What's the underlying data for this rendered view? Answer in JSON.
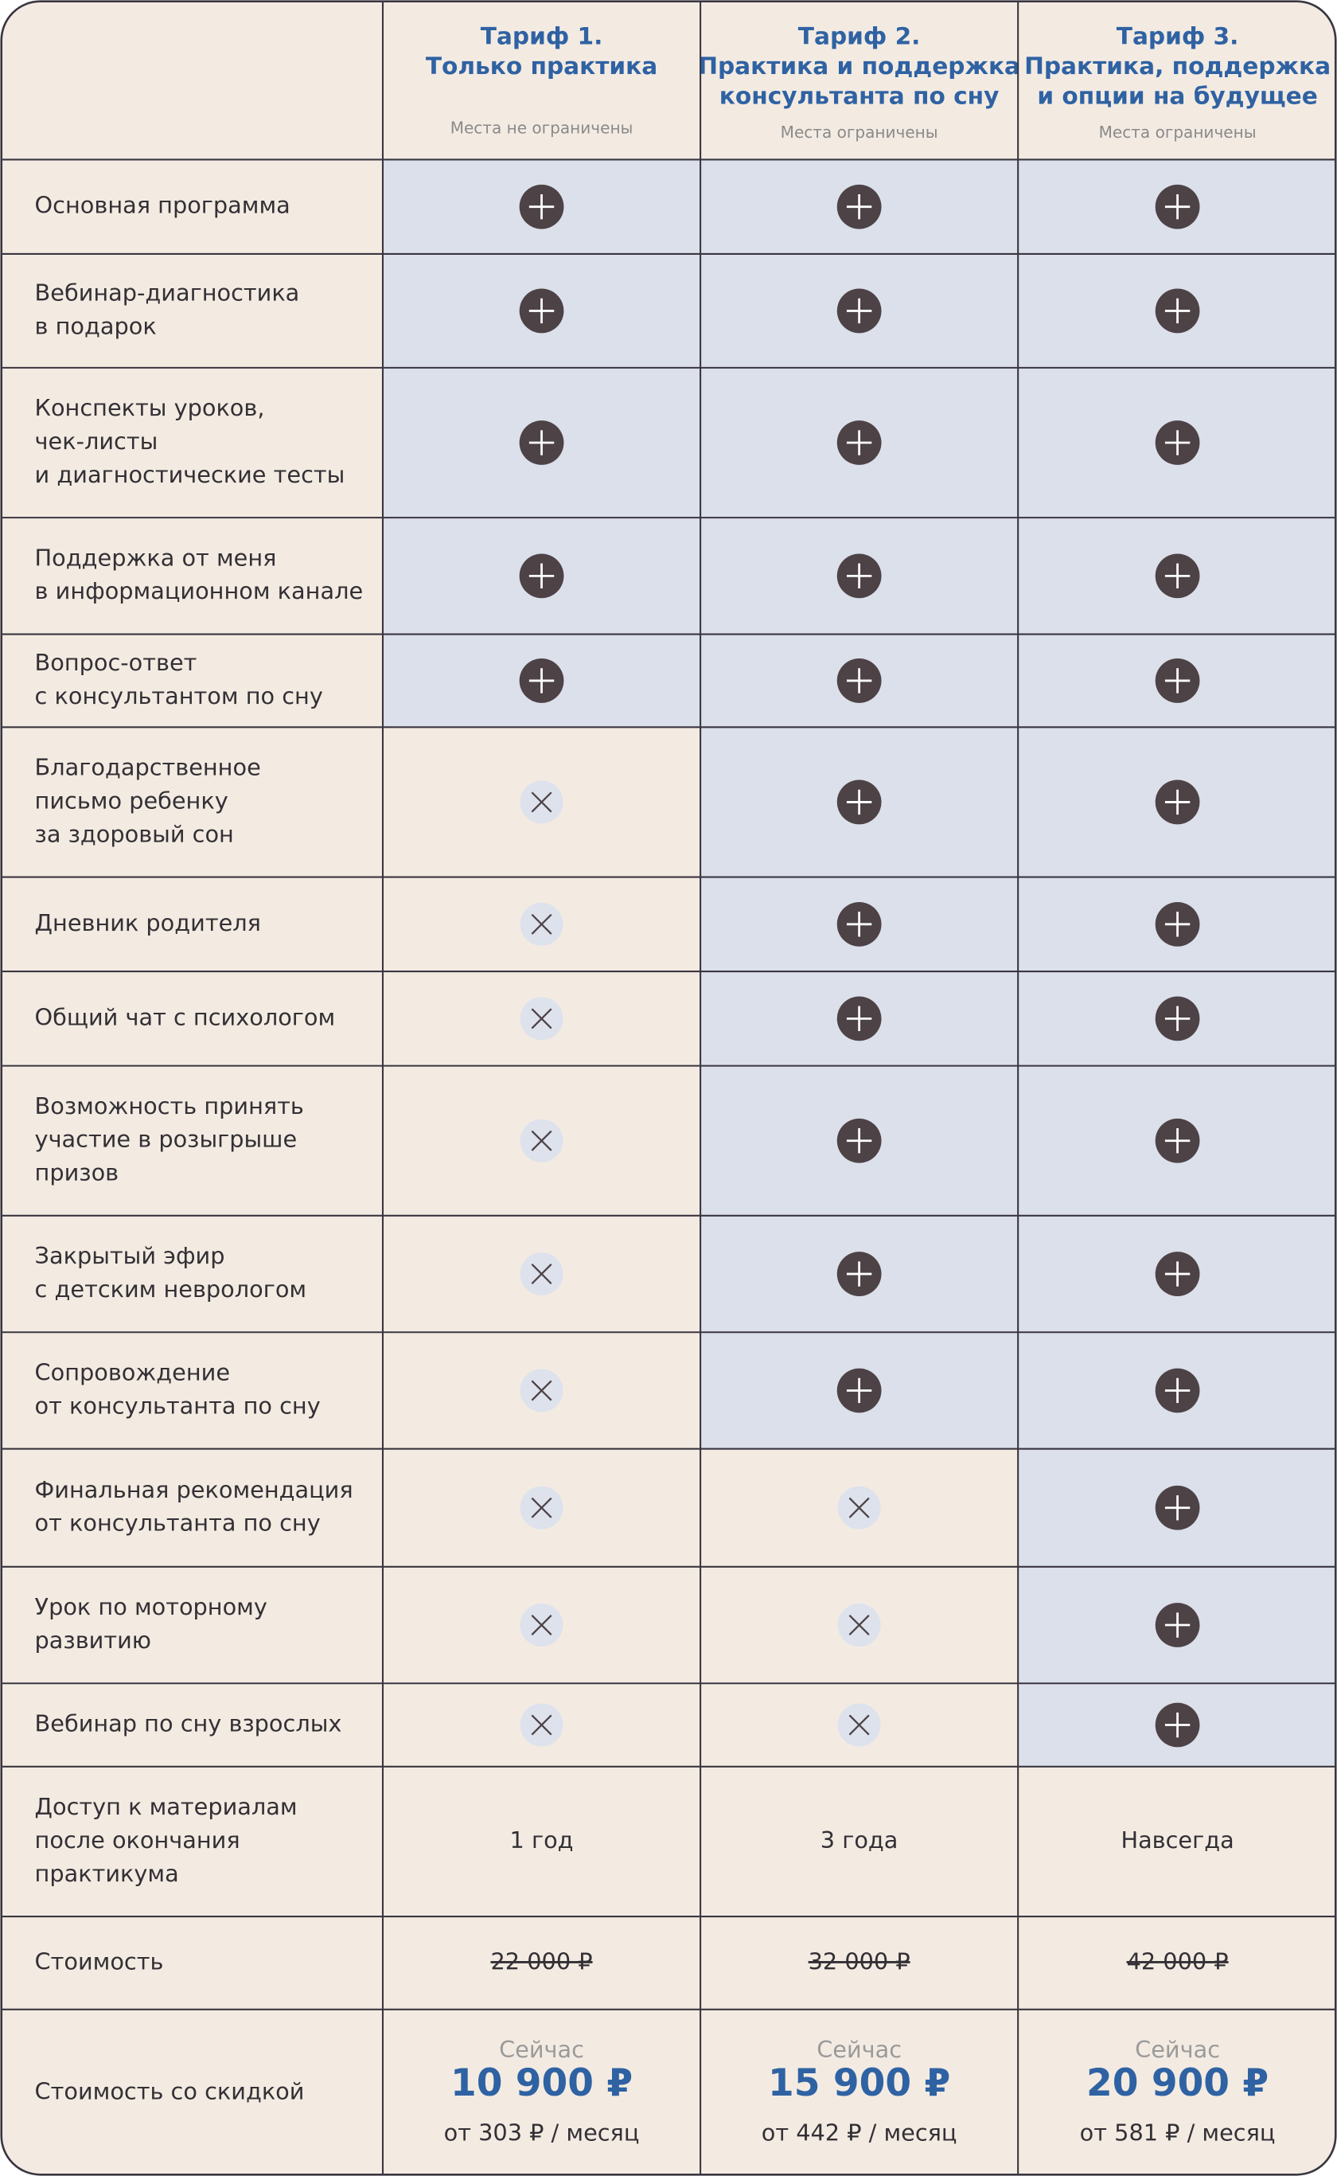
{
  "header": {
    "plans": [
      {
        "title": [
          "Тариф 1.",
          "Только практика"
        ],
        "note": "Места не ограничены"
      },
      {
        "title": [
          "Тариф 2.",
          "Практика и поддержка",
          "консультанта по сну"
        ],
        "note": "Места ограничены"
      },
      {
        "title": [
          "Тариф 3.",
          "Практика, поддержка",
          "и опции на будущее"
        ],
        "note": "Места ограничены"
      }
    ]
  },
  "rows": [
    {
      "label": [
        "Основная программа"
      ],
      "cells": [
        true,
        true,
        true
      ]
    },
    {
      "label": [
        "Вебинар-диагностика",
        "в подарок"
      ],
      "cells": [
        true,
        true,
        true
      ]
    },
    {
      "label": [
        "Конспекты уроков,",
        "чек-листы",
        "и диагностические тесты"
      ],
      "cells": [
        true,
        true,
        true
      ]
    },
    {
      "label": [
        "Поддержка от меня",
        "в информационном канале"
      ],
      "cells": [
        true,
        true,
        true
      ]
    },
    {
      "label": [
        "Вопрос-ответ",
        "с консультантом по сну"
      ],
      "cells": [
        true,
        true,
        true
      ]
    },
    {
      "label": [
        "Благодарственное",
        "письмо ребенку",
        "за здоровый сон"
      ],
      "cells": [
        false,
        true,
        true
      ]
    },
    {
      "label": [
        "Дневник родителя"
      ],
      "cells": [
        false,
        true,
        true
      ]
    },
    {
      "label": [
        "Общий чат с психологом"
      ],
      "cells": [
        false,
        true,
        true
      ]
    },
    {
      "label": [
        "Возможность принять",
        "участие в розыгрыше",
        "призов"
      ],
      "cells": [
        false,
        true,
        true
      ]
    },
    {
      "label": [
        "Закрытый эфир",
        "с детским неврологом"
      ],
      "cells": [
        false,
        true,
        true
      ]
    },
    {
      "label": [
        "Сопровождение",
        "от консультанта по сну"
      ],
      "cells": [
        false,
        true,
        true
      ]
    },
    {
      "label": [
        "Финальная рекомендация",
        "от консультанта по сну"
      ],
      "cells": [
        false,
        false,
        true
      ]
    },
    {
      "label": [
        "Урок по моторному",
        "развитию"
      ],
      "cells": [
        false,
        false,
        true
      ]
    },
    {
      "label": [
        "Вебинар по сну взрослых"
      ],
      "cells": [
        false,
        false,
        true
      ]
    }
  ],
  "access": {
    "label": [
      "Доступ к материалам",
      "после окончания",
      "практикума"
    ],
    "cells": [
      "1 год",
      "3 года",
      "Навсегда"
    ]
  },
  "price": {
    "label": "Стоимость",
    "cells": [
      "22 000 ₽",
      "32 000 ₽",
      "42 000 ₽"
    ]
  },
  "discount": {
    "label": "Стоимость со скидкой",
    "cells": [
      {
        "caption": "Сейчас",
        "price": "10 900 ₽",
        "monthly": "от 303 ₽ / месяц"
      },
      {
        "caption": "Сейчас",
        "price": "15 900 ₽",
        "monthly": "от 442 ₽ / месяц"
      },
      {
        "caption": "Сейчас",
        "price": "20 900 ₽",
        "monthly": "от 581 ₽ / месяц"
      }
    ]
  }
}
